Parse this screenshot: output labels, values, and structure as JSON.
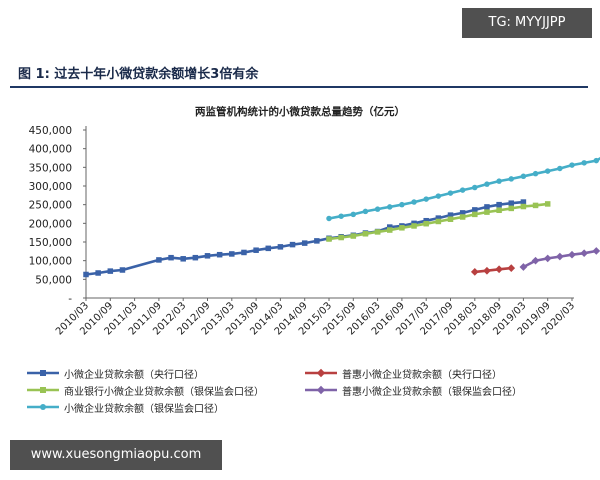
{
  "watermark_top": "TG: MYYJJPP",
  "watermark_bottom": "www.xuesongmiaopu.com",
  "figure_title": "图 1: 过去十年小微贷款余额增长3倍有余",
  "chart_data": {
    "type": "line",
    "title": "两监管机构统计的小微贷款总量趋势（亿元）",
    "xlabel": "",
    "ylabel": "",
    "ylim": [
      0,
      450000
    ],
    "y_ticks": [
      "-",
      "50,000",
      "100,000",
      "150,000",
      "200,000",
      "250,000",
      "300,000",
      "350,000",
      "400,000",
      "450,000"
    ],
    "y_tick_values": [
      0,
      50000,
      100000,
      150000,
      200000,
      250000,
      300000,
      350000,
      400000,
      450000
    ],
    "categories": [
      "2010/03",
      "2010/09",
      "2011/03",
      "2011/09",
      "2012/03",
      "2012/09",
      "2013/03",
      "2013/09",
      "2014/03",
      "2014/09",
      "2015/03",
      "2015/09",
      "2016/03",
      "2016/09",
      "2017/03",
      "2017/09",
      "2018/03",
      "2018/09",
      "2019/03",
      "2019/09",
      "2020/03"
    ],
    "grid": false,
    "legend_position": "bottom",
    "series": [
      {
        "name": "小微企业贷款余额（央行口径）",
        "color": "#3a62a8",
        "marker": "square",
        "points": [
          [
            0,
            63000
          ],
          [
            1,
            67000
          ],
          [
            2,
            72000
          ],
          [
            3,
            75000
          ],
          [
            6,
            102000
          ],
          [
            7,
            108000
          ],
          [
            8,
            105000
          ],
          [
            9,
            108000
          ],
          [
            10,
            113000
          ],
          [
            11,
            116000
          ],
          [
            12,
            118000
          ],
          [
            13,
            122000
          ],
          [
            14,
            128000
          ],
          [
            15,
            133000
          ],
          [
            16,
            137000
          ],
          [
            17,
            143000
          ],
          [
            18,
            147000
          ],
          [
            19,
            153000
          ],
          [
            20,
            160000
          ],
          [
            21,
            164000
          ],
          [
            22,
            168000
          ],
          [
            23,
            174000
          ],
          [
            24,
            178000
          ],
          [
            25,
            190000
          ],
          [
            26,
            193000
          ],
          [
            27,
            200000
          ],
          [
            28,
            207000
          ],
          [
            29,
            214000
          ],
          [
            30,
            222000
          ],
          [
            31,
            228000
          ],
          [
            32,
            236000
          ],
          [
            33,
            244000
          ],
          [
            34,
            250000
          ],
          [
            35,
            254000
          ],
          [
            36,
            257000
          ]
        ]
      },
      {
        "name": "普惠小微企业贷款余额（央行口径）",
        "color": "#b84040",
        "marker": "diamond",
        "points": [
          [
            32,
            70000
          ],
          [
            33,
            73000
          ],
          [
            34,
            77000
          ],
          [
            35,
            80000
          ]
        ]
      },
      {
        "name": "商业银行小微企业贷款余额（银保监会口径）",
        "color": "#99c354",
        "marker": "square",
        "points": [
          [
            20,
            158000
          ],
          [
            21,
            162000
          ],
          [
            22,
            166000
          ],
          [
            23,
            172000
          ],
          [
            24,
            177000
          ],
          [
            25,
            182000
          ],
          [
            26,
            188000
          ],
          [
            27,
            193000
          ],
          [
            28,
            199000
          ],
          [
            29,
            205000
          ],
          [
            30,
            211000
          ],
          [
            31,
            217000
          ],
          [
            32,
            224000
          ],
          [
            33,
            230000
          ],
          [
            34,
            235000
          ],
          [
            35,
            240000
          ],
          [
            36,
            245000
          ],
          [
            37,
            248000
          ],
          [
            38,
            252000
          ]
        ]
      },
      {
        "name": "普惠小微企业贷款余额（银保监会口径）",
        "color": "#7f63a8",
        "marker": "diamond",
        "points": [
          [
            36,
            83000
          ],
          [
            37,
            100000
          ],
          [
            38,
            106000
          ],
          [
            39,
            111000
          ],
          [
            40,
            116000
          ],
          [
            41,
            120000
          ],
          [
            42,
            126000
          ]
        ]
      },
      {
        "name": "小微企业贷款余额（银保监会口径）",
        "color": "#45aec8",
        "marker": "circle",
        "points": [
          [
            20,
            213000
          ],
          [
            21,
            219000
          ],
          [
            22,
            224000
          ],
          [
            23,
            232000
          ],
          [
            24,
            238000
          ],
          [
            25,
            244000
          ],
          [
            26,
            250000
          ],
          [
            27,
            257000
          ],
          [
            28,
            265000
          ],
          [
            29,
            273000
          ],
          [
            30,
            281000
          ],
          [
            31,
            289000
          ],
          [
            32,
            296000
          ],
          [
            33,
            305000
          ],
          [
            34,
            313000
          ],
          [
            35,
            319000
          ],
          [
            36,
            326000
          ],
          [
            37,
            333000
          ],
          [
            38,
            340000
          ],
          [
            39,
            347000
          ],
          [
            40,
            356000
          ],
          [
            41,
            362000
          ],
          [
            42,
            368000
          ],
          [
            43,
            387000
          ]
        ]
      }
    ]
  }
}
